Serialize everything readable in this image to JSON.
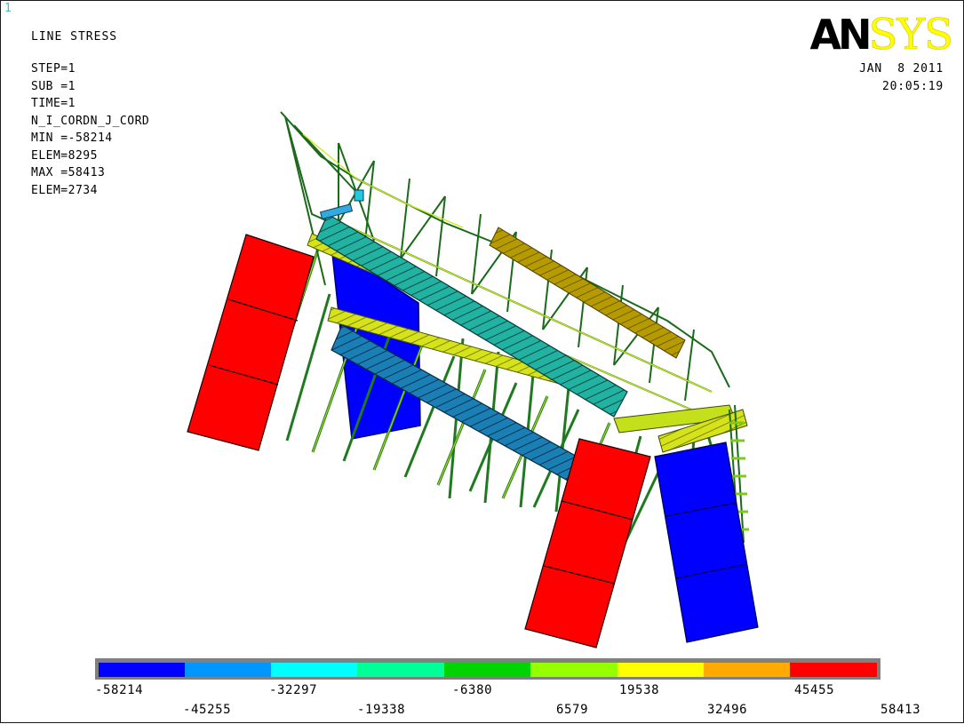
{
  "window": {
    "number": "1"
  },
  "plot": {
    "title": "LINE STRESS",
    "info_lines": [
      "STEP=1",
      "SUB =1",
      "TIME=1",
      "N_I_CORDN_J_CORD",
      "MIN =-58214",
      "ELEM=8295",
      "MAX =58413",
      "ELEM=2734"
    ],
    "date": "JAN  8 2011",
    "time": "20:05:19"
  },
  "logo": {
    "part1": "AN",
    "part2": "SYS"
  },
  "legend": {
    "colors": [
      "#0000ff",
      "#0096ff",
      "#00ffff",
      "#00ff96",
      "#00d400",
      "#96ff00",
      "#ffff00",
      "#ffaa00",
      "#ff0000"
    ],
    "labels": [
      "-58214",
      "-45255",
      "-32297",
      "-19338",
      "-6380",
      "6579",
      "19538",
      "32496",
      "45455",
      "58413"
    ]
  }
}
